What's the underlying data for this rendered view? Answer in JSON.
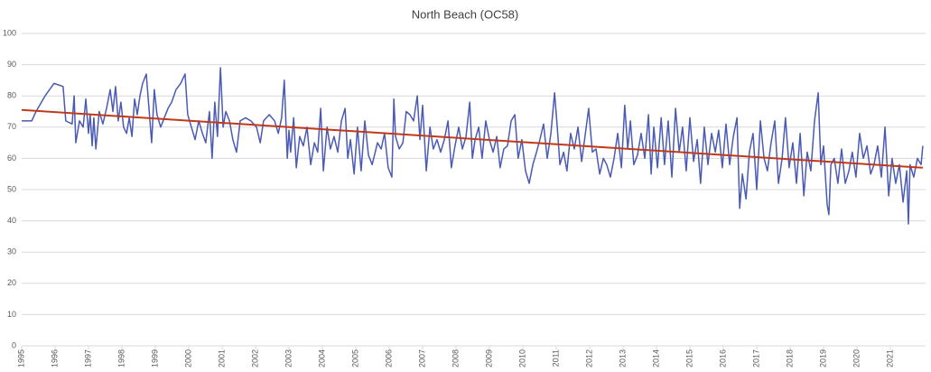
{
  "chart_data": {
    "type": "line",
    "title": "North Beach (OC58)",
    "xlim": [
      1995,
      2022
    ],
    "xticks": [
      1995,
      1996,
      1997,
      1998,
      1999,
      2000,
      2001,
      2002,
      2003,
      2004,
      2005,
      2006,
      2007,
      2008,
      2009,
      2010,
      2011,
      2012,
      2013,
      2014,
      2015,
      2016,
      2017,
      2018,
      2019,
      2020,
      2021
    ],
    "ylim": [
      0,
      100
    ],
    "yticks": [
      0,
      10,
      20,
      30,
      40,
      50,
      60,
      70,
      80,
      90,
      100
    ],
    "grid": true,
    "series": [
      {
        "color": "#4a5ab5",
        "x": [
          1995.0,
          1995.3,
          1995.43,
          1995.7,
          1995.97,
          1996.24,
          1996.32,
          1996.51,
          1996.57,
          1996.62,
          1996.73,
          1996.84,
          1996.92,
          1997.0,
          1997.05,
          1997.11,
          1997.16,
          1997.22,
          1997.32,
          1997.43,
          1997.54,
          1997.65,
          1997.73,
          1997.81,
          1997.89,
          1997.97,
          1998.05,
          1998.14,
          1998.22,
          1998.3,
          1998.38,
          1998.46,
          1998.54,
          1998.62,
          1998.73,
          1998.81,
          1998.89,
          1998.97,
          1999.05,
          1999.16,
          1999.27,
          1999.38,
          1999.49,
          1999.62,
          1999.76,
          1999.89,
          1999.97,
          2000.08,
          2000.19,
          2000.3,
          2000.41,
          2000.51,
          2000.62,
          2000.7,
          2000.78,
          2000.86,
          2000.95,
          2001.03,
          2001.11,
          2001.22,
          2001.32,
          2001.43,
          2001.54,
          2001.7,
          2001.86,
          2002.03,
          2002.14,
          2002.24,
          2002.41,
          2002.57,
          2002.68,
          2002.78,
          2002.86,
          2002.95,
          2003.0,
          2003.05,
          2003.14,
          2003.22,
          2003.32,
          2003.43,
          2003.54,
          2003.65,
          2003.76,
          2003.86,
          2003.95,
          2004.03,
          2004.14,
          2004.24,
          2004.35,
          2004.46,
          2004.57,
          2004.68,
          2004.76,
          2004.84,
          2004.95,
          2005.05,
          2005.16,
          2005.27,
          2005.38,
          2005.49,
          2005.65,
          2005.76,
          2005.86,
          2005.97,
          2006.08,
          2006.14,
          2006.19,
          2006.3,
          2006.41,
          2006.51,
          2006.62,
          2006.73,
          2006.84,
          2006.92,
          2007.0,
          2007.11,
          2007.22,
          2007.32,
          2007.43,
          2007.54,
          2007.65,
          2007.76,
          2007.86,
          2007.97,
          2008.08,
          2008.19,
          2008.3,
          2008.41,
          2008.49,
          2008.57,
          2008.68,
          2008.78,
          2008.89,
          2009.0,
          2009.11,
          2009.22,
          2009.32,
          2009.43,
          2009.54,
          2009.65,
          2009.76,
          2009.86,
          2009.97,
          2010.08,
          2010.19,
          2010.3,
          2010.41,
          2010.51,
          2010.62,
          2010.73,
          2010.84,
          2010.95,
          2011.03,
          2011.11,
          2011.22,
          2011.32,
          2011.43,
          2011.54,
          2011.65,
          2011.76,
          2011.86,
          2011.97,
          2012.08,
          2012.19,
          2012.3,
          2012.41,
          2012.51,
          2012.62,
          2012.73,
          2012.84,
          2012.95,
          2013.05,
          2013.14,
          2013.22,
          2013.32,
          2013.43,
          2013.54,
          2013.65,
          2013.76,
          2013.84,
          2013.92,
          2014.03,
          2014.14,
          2014.24,
          2014.35,
          2014.46,
          2014.57,
          2014.68,
          2014.78,
          2014.89,
          2015.0,
          2015.11,
          2015.22,
          2015.32,
          2015.43,
          2015.54,
          2015.65,
          2015.76,
          2015.86,
          2015.97,
          2016.08,
          2016.19,
          2016.3,
          2016.41,
          2016.49,
          2016.57,
          2016.68,
          2016.78,
          2016.89,
          2017.0,
          2017.11,
          2017.22,
          2017.32,
          2017.43,
          2017.54,
          2017.65,
          2017.76,
          2017.86,
          2017.97,
          2018.08,
          2018.19,
          2018.3,
          2018.41,
          2018.51,
          2018.62,
          2018.73,
          2018.84,
          2018.92,
          2019.0,
          2019.11,
          2019.16,
          2019.22,
          2019.32,
          2019.43,
          2019.54,
          2019.65,
          2019.76,
          2019.86,
          2019.97,
          2020.08,
          2020.19,
          2020.3,
          2020.41,
          2020.51,
          2020.62,
          2020.73,
          2020.84,
          2020.95,
          2021.05,
          2021.16,
          2021.27,
          2021.38,
          2021.49,
          2021.54,
          2021.59,
          2021.7,
          2021.81,
          2021.92,
          2021.97
        ],
        "values": [
          72,
          72,
          75,
          80,
          84,
          83,
          72,
          71,
          80,
          65,
          72,
          70,
          79,
          68,
          74,
          64,
          73,
          63,
          75,
          71,
          76,
          82,
          75,
          83,
          72,
          78,
          70,
          68,
          73,
          67,
          79,
          74,
          80,
          84,
          87,
          76,
          65,
          82,
          74,
          70,
          73,
          76,
          78,
          82,
          84,
          87,
          74,
          70,
          66,
          72,
          68,
          65,
          75,
          60,
          78,
          67,
          89,
          70,
          75,
          72,
          66,
          62,
          72,
          73,
          72,
          70,
          65,
          72,
          74,
          72,
          68,
          73,
          85,
          60,
          69,
          62,
          73,
          57,
          67,
          64,
          70,
          58,
          65,
          62,
          76,
          56,
          70,
          63,
          67,
          62,
          72,
          76,
          60,
          66,
          55,
          70,
          56,
          72,
          61,
          58,
          65,
          63,
          68,
          57,
          54,
          79,
          67,
          63,
          65,
          75,
          74,
          72,
          80,
          66,
          77,
          56,
          70,
          63,
          66,
          62,
          66,
          72,
          57,
          64,
          70,
          63,
          67,
          78,
          60,
          66,
          70,
          60,
          72,
          66,
          62,
          67,
          57,
          63,
          64,
          72,
          74,
          60,
          66,
          56,
          52,
          58,
          62,
          66,
          71,
          60,
          68,
          81,
          70,
          58,
          62,
          56,
          68,
          63,
          70,
          59,
          67,
          76,
          62,
          63,
          55,
          60,
          58,
          54,
          60,
          68,
          57,
          77,
          63,
          72,
          58,
          61,
          68,
          60,
          74,
          55,
          70,
          57,
          73,
          58,
          72,
          54,
          76,
          62,
          70,
          56,
          73,
          59,
          66,
          52,
          70,
          58,
          68,
          62,
          69,
          57,
          71,
          58,
          67,
          73,
          44,
          55,
          47,
          62,
          68,
          50,
          72,
          60,
          56,
          65,
          72,
          52,
          60,
          73,
          57,
          65,
          52,
          68,
          48,
          62,
          56,
          72,
          81,
          58,
          64,
          45,
          42,
          58,
          60,
          52,
          63,
          52,
          56,
          62,
          54,
          68,
          60,
          64,
          55,
          58,
          64,
          54,
          70,
          48,
          60,
          52,
          58,
          46,
          56,
          39,
          58,
          54,
          60,
          58,
          64
        ]
      },
      {
        "color": "#c0391b",
        "x": [
          1995,
          2021.97
        ],
        "values": [
          75.5,
          57
        ]
      }
    ]
  }
}
